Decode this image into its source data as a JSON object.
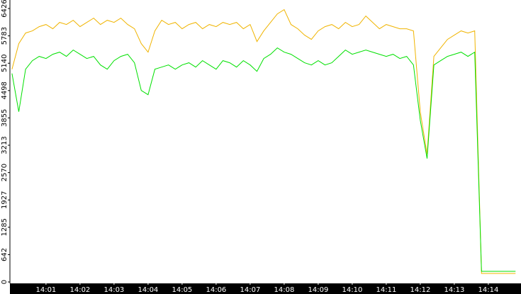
{
  "chart_data": {
    "type": "line",
    "x": [
      840.0,
      840.2,
      840.4,
      840.6,
      840.8,
      841.0,
      841.2,
      841.4,
      841.6,
      841.8,
      842.0,
      842.2,
      842.4,
      842.6,
      842.8,
      843.0,
      843.2,
      843.4,
      843.6,
      843.8,
      844.0,
      844.2,
      844.4,
      844.6,
      844.8,
      845.0,
      845.2,
      845.4,
      845.6,
      845.8,
      846.0,
      846.2,
      846.4,
      846.6,
      846.8,
      847.0,
      847.2,
      847.4,
      847.6,
      847.8,
      848.0,
      848.2,
      848.4,
      848.6,
      848.8,
      849.0,
      849.2,
      849.4,
      849.6,
      849.8,
      850.0,
      850.2,
      850.4,
      850.6,
      850.8,
      851.0,
      851.2,
      851.4,
      851.6,
      851.8,
      852.0,
      852.2,
      852.4,
      852.6,
      852.8,
      853.0,
      853.2,
      853.4,
      853.6,
      853.8,
      854.0,
      854.2,
      854.4,
      854.6,
      854.8
    ],
    "series": [
      {
        "color": "#f0b400",
        "values": [
          5000,
          5600,
          5850,
          5900,
          6000,
          6050,
          5950,
          6100,
          6050,
          6150,
          6000,
          6100,
          6200,
          6050,
          6150,
          6100,
          6200,
          6050,
          5950,
          5600,
          5400,
          5900,
          6150,
          6050,
          6100,
          5950,
          6050,
          6100,
          5950,
          6050,
          6000,
          6100,
          6050,
          6100,
          5950,
          6050,
          5650,
          5900,
          6100,
          6300,
          6400,
          6050,
          5950,
          5800,
          5700,
          5900,
          6000,
          6050,
          5950,
          6100,
          6000,
          6050,
          6250,
          6100,
          5950,
          6050,
          6000,
          5950,
          5950,
          5900,
          4000,
          3000,
          5300,
          5500,
          5700,
          5800,
          5900,
          5850,
          5900,
          200,
          200,
          200,
          200,
          200,
          200
        ]
      },
      {
        "color": "#00e000",
        "values": [
          4900,
          4000,
          5000,
          5200,
          5300,
          5250,
          5350,
          5400,
          5300,
          5450,
          5350,
          5250,
          5300,
          5100,
          5000,
          5200,
          5300,
          5350,
          5150,
          4500,
          4400,
          5000,
          5050,
          5100,
          5000,
          5100,
          5150,
          5050,
          5200,
          5100,
          5000,
          5200,
          5150,
          5050,
          5200,
          5100,
          4950,
          5250,
          5350,
          5500,
          5400,
          5350,
          5250,
          5150,
          5100,
          5200,
          5100,
          5150,
          5300,
          5450,
          5350,
          5400,
          5450,
          5400,
          5350,
          5300,
          5350,
          5250,
          5300,
          5100,
          3800,
          2900,
          5100,
          5200,
          5300,
          5350,
          5400,
          5300,
          5400,
          250,
          250,
          250,
          250,
          250,
          250
        ]
      }
    ],
    "xlim": [
      839.94,
      854.96
    ],
    "xticks": [
      {
        "value": 841,
        "label": "14:01"
      },
      {
        "value": 842,
        "label": "14:02"
      },
      {
        "value": 843,
        "label": "14:03"
      },
      {
        "value": 844,
        "label": "14:04"
      },
      {
        "value": 845,
        "label": "14:05"
      },
      {
        "value": 846,
        "label": "14:06"
      },
      {
        "value": 847,
        "label": "14:07"
      },
      {
        "value": 848,
        "label": "14:08"
      },
      {
        "value": 849,
        "label": "14:09"
      },
      {
        "value": 850,
        "label": "14:10"
      },
      {
        "value": 851,
        "label": "14:11"
      },
      {
        "value": 852,
        "label": "14:12"
      },
      {
        "value": 853,
        "label": "14:13"
      },
      {
        "value": 854,
        "label": "14:14"
      }
    ],
    "ylim": [
      0,
      6426
    ],
    "yticks": [
      0,
      642,
      1285,
      1927,
      2570,
      3213,
      3855,
      4498,
      5140,
      5783,
      6426
    ]
  }
}
